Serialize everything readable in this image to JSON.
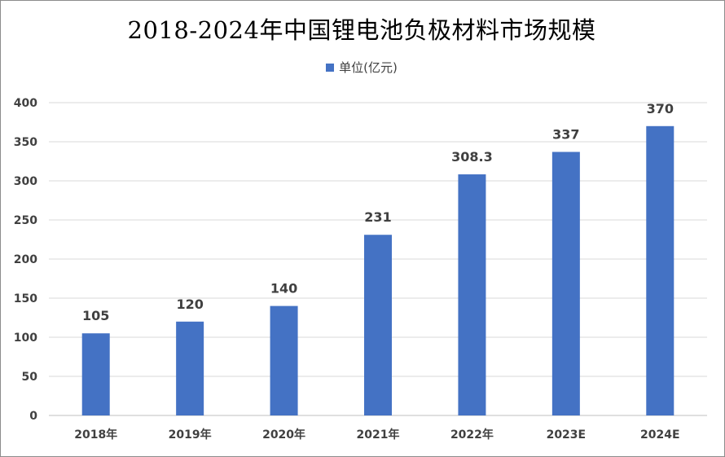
{
  "chart_data": {
    "type": "bar",
    "title": "2018-2024年中国锂电池负极材料市场规模",
    "categories": [
      "2018年",
      "2019年",
      "2020年",
      "2021年",
      "2022年",
      "2023E",
      "2024E"
    ],
    "series": [
      {
        "name": "单位(亿元)",
        "values": [
          105,
          120,
          140,
          231,
          308.3,
          337,
          370
        ],
        "color": "#4472C4"
      }
    ],
    "data_labels": [
      "105",
      "120",
      "140",
      "231",
      "308.3",
      "337",
      "370"
    ],
    "ylim": [
      0,
      400
    ],
    "yticks": [
      0,
      50,
      100,
      150,
      200,
      250,
      300,
      350,
      400
    ],
    "grid": true,
    "legend_position": "top"
  },
  "colors": {
    "bar": "#4472C4",
    "gridline": "#d9d9d9",
    "text": "#404040"
  }
}
